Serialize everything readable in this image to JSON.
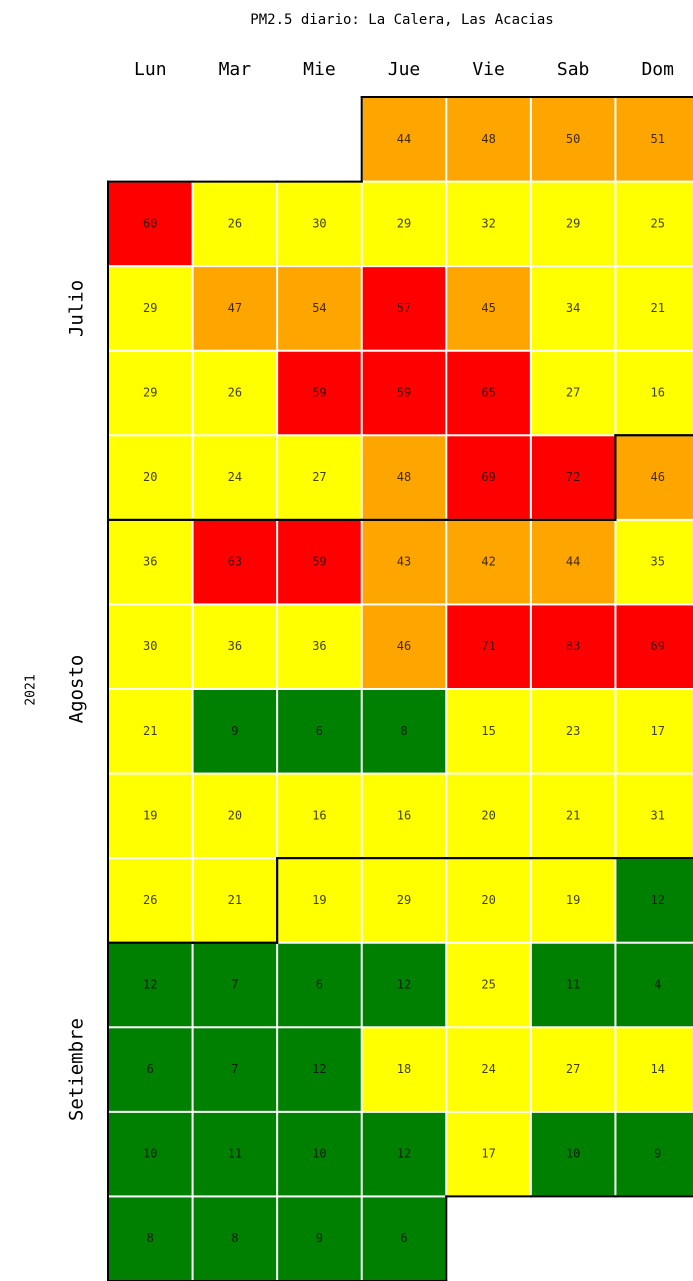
{
  "chart_data": {
    "type": "calendar",
    "title": "PM2.5 diario: La Calera, Las Acacias",
    "year": "2021",
    "weekdays": [
      "Lun",
      "Mar",
      "Mie",
      "Jue",
      "Vie",
      "Sab",
      "Dom"
    ],
    "start_column": 3,
    "months": [
      {
        "name": "Julio",
        "values": [
          44,
          48,
          50,
          51,
          60,
          26,
          30,
          29,
          32,
          29,
          25,
          29,
          47,
          54,
          57,
          45,
          34,
          21,
          29,
          26,
          59,
          59,
          65,
          27,
          16,
          20,
          24,
          27,
          48,
          69,
          72
        ]
      },
      {
        "name": "Agosto",
        "values": [
          46,
          36,
          63,
          59,
          43,
          42,
          44,
          35,
          30,
          36,
          36,
          46,
          71,
          83,
          69,
          21,
          9,
          6,
          8,
          15,
          23,
          17,
          19,
          20,
          16,
          16,
          20,
          21,
          31,
          26,
          21
        ]
      },
      {
        "name": "Setiembre",
        "values": [
          19,
          29,
          20,
          19,
          12,
          12,
          7,
          6,
          12,
          25,
          11,
          4,
          6,
          7,
          12,
          18,
          24,
          27,
          14,
          10,
          11,
          10,
          12,
          17,
          10,
          9,
          8,
          8,
          9,
          6
        ]
      }
    ],
    "color_bins": {
      "edges": [
        12.5,
        37.5,
        55.5
      ],
      "colors": [
        "#008000",
        "#ffff00",
        "#ffa500",
        "#ff0000"
      ]
    },
    "border_color": "#000000"
  }
}
